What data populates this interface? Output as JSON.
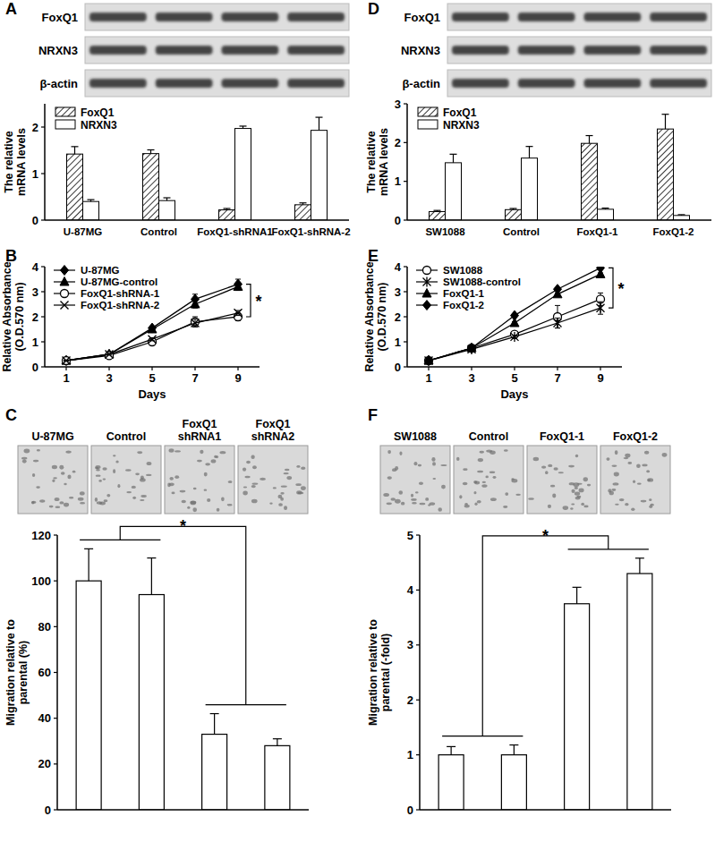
{
  "chart_data": [
    {
      "panel": "A",
      "type": "bar",
      "blots": [
        "FoxQ1",
        "NRXN3",
        "β-actin"
      ],
      "categories": [
        "U-87MG",
        "Control",
        "FoxQ1-shRNA1",
        "FoxQ1-shRNA-2"
      ],
      "series": [
        {
          "name": "FoxQ1",
          "color": "#000000",
          "values": [
            1.42,
            1.43,
            0.22,
            0.33
          ],
          "errors": [
            0.16,
            0.08,
            0.03,
            0.04
          ]
        },
        {
          "name": "NRXN3",
          "color": "#ffffff",
          "values": [
            0.4,
            0.42,
            1.97,
            1.93
          ],
          "errors": [
            0.04,
            0.06,
            0.05,
            0.28
          ]
        }
      ],
      "ylabel": [
        "The relative",
        "mRNA levels"
      ],
      "ylim": [
        0,
        2.5
      ],
      "yticks": [
        0,
        1,
        2
      ],
      "legend": "upper left"
    },
    {
      "panel": "B",
      "type": "line",
      "x": [
        1,
        3,
        5,
        7,
        9
      ],
      "xlim": [
        0,
        10
      ],
      "xticks": [
        1,
        3,
        5,
        7,
        9
      ],
      "xlabel": "Days",
      "ylabel": [
        "Relative Absorbance",
        "(O.D.570 nm)"
      ],
      "ylim": [
        0,
        4
      ],
      "yticks": [
        0,
        1,
        2,
        3,
        4
      ],
      "legend": "upper left",
      "annotation": "*",
      "series": [
        {
          "name": "U-87MG",
          "color": "#000000",
          "marker": "diamond",
          "values": [
            0.25,
            0.5,
            1.55,
            2.7,
            3.3
          ],
          "errors": [
            0.02,
            0.03,
            0.06,
            0.2,
            0.2
          ]
        },
        {
          "name": "U-87MG-control",
          "color": "#000000",
          "marker": "triangle",
          "values": [
            0.25,
            0.5,
            1.5,
            2.5,
            3.2
          ],
          "errors": [
            0.02,
            0.03,
            0.06,
            0.15,
            0.15
          ]
        },
        {
          "name": "FoxQ1-shRNA-1",
          "color": "#000000",
          "marker": "circle-open",
          "values": [
            0.25,
            0.45,
            1.0,
            1.8,
            2.0
          ],
          "errors": [
            0.02,
            0.03,
            0.08,
            0.2,
            0.15
          ]
        },
        {
          "name": "FoxQ1-shRNA-2",
          "color": "#000000",
          "marker": "x",
          "values": [
            0.25,
            0.5,
            1.1,
            1.75,
            2.15
          ],
          "errors": [
            0.02,
            0.03,
            0.06,
            0.15,
            0.1
          ]
        }
      ]
    },
    {
      "panel": "C",
      "type": "bar",
      "categories": [
        "U-87MG",
        "Control",
        "FoxQ1 shRNA1",
        "FoxQ1 shRNA2"
      ],
      "values": [
        100,
        94,
        33,
        28
      ],
      "errors": [
        14,
        16,
        9,
        3
      ],
      "color": "#ffffff",
      "ylabel": [
        "Migration relative to",
        "parental (%)"
      ],
      "ylim": [
        0,
        120
      ],
      "yticks": [
        0,
        20,
        40,
        60,
        80,
        100,
        120
      ],
      "annotation": "*"
    },
    {
      "panel": "D",
      "type": "bar",
      "blots": [
        "FoxQ1",
        "NRXN3",
        "β-actin"
      ],
      "categories": [
        "SW1088",
        "Control",
        "FoxQ1-1",
        "FoxQ1-2"
      ],
      "series": [
        {
          "name": "FoxQ1",
          "color": "#000000",
          "values": [
            0.22,
            0.27,
            1.98,
            2.35
          ],
          "errors": [
            0.03,
            0.03,
            0.2,
            0.38
          ]
        },
        {
          "name": "NRXN3",
          "color": "#ffffff",
          "values": [
            1.48,
            1.6,
            0.28,
            0.12
          ],
          "errors": [
            0.22,
            0.3,
            0.03,
            0.02
          ]
        }
      ],
      "ylabel": [
        "The relative",
        "mRNA levels"
      ],
      "ylim": [
        0,
        3
      ],
      "yticks": [
        0,
        1,
        2,
        3
      ],
      "legend": "upper left"
    },
    {
      "panel": "E",
      "type": "line",
      "x": [
        1,
        3,
        5,
        7,
        9
      ],
      "xlim": [
        0,
        10
      ],
      "xticks": [
        1,
        3,
        5,
        7,
        9
      ],
      "xlabel": "Days",
      "ylabel": [
        "Relative Absorbance",
        "(O.D.570 nm)"
      ],
      "ylim": [
        0,
        4
      ],
      "yticks": [
        0,
        1,
        2,
        3,
        4
      ],
      "legend": "upper left",
      "annotation": "*",
      "series": [
        {
          "name": "SW1088",
          "color": "#000000",
          "marker": "circle-open",
          "values": [
            0.25,
            0.75,
            1.3,
            2.0,
            2.7
          ],
          "errors": [
            0.02,
            0.04,
            0.08,
            0.45,
            0.25
          ]
        },
        {
          "name": "SW1088-control",
          "color": "#000000",
          "marker": "asterisk",
          "values": [
            0.25,
            0.7,
            1.2,
            1.75,
            2.35
          ],
          "errors": [
            0.02,
            0.04,
            0.06,
            0.2,
            0.25
          ]
        },
        {
          "name": "FoxQ1-1",
          "color": "#000000",
          "marker": "triangle",
          "values": [
            0.25,
            0.75,
            1.75,
            2.9,
            3.7
          ],
          "errors": [
            0.02,
            0.04,
            0.05,
            0.05,
            0.05
          ]
        },
        {
          "name": "FoxQ1-2",
          "color": "#000000",
          "marker": "diamond",
          "values": [
            0.25,
            0.75,
            2.05,
            3.1,
            3.95
          ],
          "errors": [
            0.02,
            0.04,
            0.05,
            0.05,
            0.05
          ]
        }
      ]
    },
    {
      "panel": "F",
      "type": "bar",
      "categories": [
        "SW1088",
        "Control",
        "FoxQ1-1",
        "FoxQ1-2"
      ],
      "values": [
        1,
        1,
        3.75,
        4.3
      ],
      "errors": [
        0.15,
        0.18,
        0.3,
        0.28
      ],
      "color": "#ffffff",
      "ylabel": [
        "Migration relative to",
        "parental (-fold)"
      ],
      "ylim": [
        0,
        5
      ],
      "yticks": [
        0,
        1,
        2,
        3,
        4,
        5
      ],
      "annotation": "*"
    }
  ]
}
